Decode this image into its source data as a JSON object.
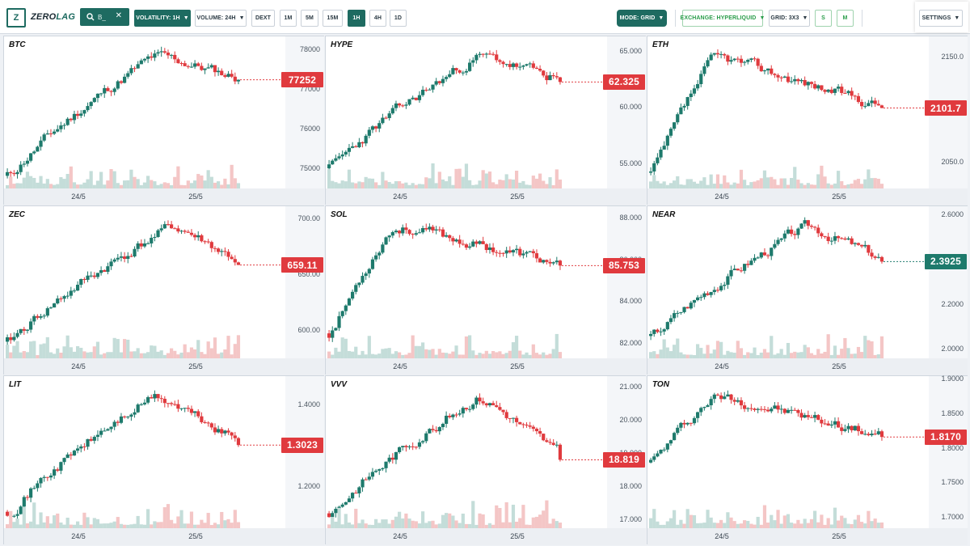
{
  "app": {
    "logo_letter": "Z",
    "logo_zero": "ZERO",
    "logo_lag": "LAG"
  },
  "search": {
    "value": "B_",
    "clear_symbol": "✕"
  },
  "toolbar": {
    "volatility": "VOLATILITY: 1H",
    "volume": "VOLUME: 24H",
    "dext": "DEXT",
    "intervals": [
      "1M",
      "5M",
      "15M",
      "1H",
      "4H",
      "1D"
    ],
    "active_interval": "1H",
    "mode": "MODE: GRID",
    "exchange": "EXCHANGE: HYPERLIQUID",
    "grid": "GRID: 3X3",
    "size_s": "S",
    "size_m": "M",
    "settings": "SETTINGS",
    "caret": "▼"
  },
  "colors": {
    "up": "#1e7a6c",
    "down": "#e03a3e",
    "vol_up": "#c4ddd9",
    "vol_down": "#f4c6c6"
  },
  "x_labels": [
    "24/5",
    "25/5"
  ],
  "charts": [
    {
      "symbol": "BTC",
      "last_price": "77252",
      "dir": "down",
      "y_ticks": [
        "78000",
        "77000",
        "76000",
        "75000"
      ],
      "y_range": [
        74500,
        78350
      ],
      "start": 74820,
      "end": 77252,
      "peak": 0.62,
      "seed": 11
    },
    {
      "symbol": "HYPE",
      "last_price": "62.325",
      "dir": "down",
      "y_ticks": [
        "65.000",
        "60.000",
        "55.000"
      ],
      "y_range": [
        52.8,
        66.4
      ],
      "start": 54.6,
      "end": 62.325,
      "peak": 0.63,
      "seed": 23
    },
    {
      "symbol": "ETH",
      "last_price": "2101.7",
      "dir": "down",
      "y_ticks": [
        "2150.0",
        "2050.0"
      ],
      "y_range": [
        2025,
        2170
      ],
      "start": 2040,
      "end": 2101.7,
      "peak": 0.25,
      "seed": 37
    },
    {
      "symbol": "ZEC",
      "last_price": "659.11",
      "dir": "down",
      "y_ticks": [
        "700.00",
        "650.00",
        "600.00"
      ],
      "y_range": [
        575,
        712
      ],
      "start": 590,
      "end": 659.11,
      "peak": 0.7,
      "seed": 41
    },
    {
      "symbol": "SOL",
      "last_price": "85.753",
      "dir": "down",
      "y_ticks": [
        "88.000",
        "86.000",
        "84.000",
        "82.000"
      ],
      "y_range": [
        81.3,
        88.6
      ],
      "start": 82.5,
      "end": 85.753,
      "peak": 0.25,
      "seed": 53
    },
    {
      "symbol": "NEAR",
      "last_price": "2.3925",
      "dir": "up",
      "y_ticks": [
        "2.6000",
        "2.4000",
        "2.2000",
        "2.0000"
      ],
      "y_range": [
        1.96,
        2.64
      ],
      "start": 2.06,
      "end": 2.3925,
      "peak": 0.66,
      "seed": 67
    },
    {
      "symbol": "LIT",
      "last_price": "1.3023",
      "dir": "down",
      "y_ticks": [
        "1.4000",
        "1.2000"
      ],
      "y_range": [
        1.1,
        1.47
      ],
      "start": 1.14,
      "end": 1.3023,
      "peak": 0.62,
      "seed": 71
    },
    {
      "symbol": "VVV",
      "last_price": "18.819",
      "dir": "down",
      "y_ticks": [
        "21.000",
        "20.000",
        "19.000",
        "18.000",
        "17.000"
      ],
      "y_range": [
        16.75,
        21.35
      ],
      "start": 17.2,
      "end": 18.819,
      "peak": 0.63,
      "seed": 83
    },
    {
      "symbol": "TON",
      "last_price": "1.8170",
      "dir": "down",
      "y_ticks": [
        "1.9000",
        "1.8500",
        "1.8000",
        "1.7500",
        "1.7000"
      ],
      "y_range": [
        1.685,
        1.905
      ],
      "start": 1.78,
      "end": 1.817,
      "peak": 0.25,
      "seed": 97
    }
  ]
}
